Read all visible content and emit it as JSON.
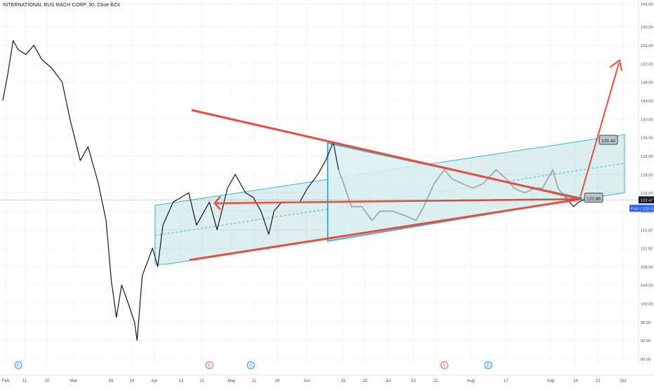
{
  "header": {
    "title": "INTERNATIONAL BUS MACH CORP, 30, Cboe BZX"
  },
  "chart_data": {
    "type": "line",
    "title": "INTERNATIONAL BUS MACH CORP, 30, Cboe BZX",
    "xlabel": "",
    "ylabel": "",
    "ylim": [
      86,
      166
    ],
    "y_ticks": [
      "88.00",
      "92.00",
      "96.00",
      "100.00",
      "104.00",
      "108.00",
      "112.00",
      "116.00",
      "120.00",
      "124.00",
      "128.00",
      "132.00",
      "136.00",
      "140.00",
      "144.00",
      "148.00",
      "152.00",
      "156.00",
      "160.00",
      "165.00"
    ],
    "y_tick_values": [
      88,
      92,
      96,
      100,
      104,
      108,
      112,
      116,
      120,
      124,
      128,
      132,
      136,
      140,
      144,
      148,
      152,
      156,
      160,
      165
    ],
    "x_ticks": [
      "Feb",
      "11",
      "20",
      "Mar",
      "16",
      "24",
      "Apr",
      "13",
      "21",
      "May",
      "11",
      "19",
      "Jun",
      "15",
      "23",
      "Jul",
      "13",
      "21",
      "Aug",
      "17",
      "Sep",
      "14",
      "22",
      "Oct"
    ],
    "price_points": [
      [
        "Feb 1",
        144
      ],
      [
        "Feb 3",
        150
      ],
      [
        "Feb 5",
        157
      ],
      [
        "Feb 7",
        155
      ],
      [
        "Feb 10",
        154
      ],
      [
        "Feb 13",
        156
      ],
      [
        "Feb 16",
        153
      ],
      [
        "Feb 20",
        151
      ],
      [
        "Feb 24",
        148
      ],
      [
        "Feb 27",
        140
      ],
      [
        "Mar 2",
        131
      ],
      [
        "Mar 5",
        134
      ],
      [
        "Mar 9",
        126
      ],
      [
        "Mar 12",
        118
      ],
      [
        "Mar 14",
        105
      ],
      [
        "Mar 16",
        97
      ],
      [
        "Mar 18",
        104
      ],
      [
        "Mar 20",
        101
      ],
      [
        "Mar 23",
        96
      ],
      [
        "Mar 24",
        92
      ],
      [
        "Mar 26",
        106
      ],
      [
        "Mar 30",
        112
      ],
      [
        "Apr 1",
        108
      ],
      [
        "Apr 3",
        117
      ],
      [
        "Apr 7",
        122
      ],
      [
        "Apr 13",
        124
      ],
      [
        "Apr 16",
        117
      ],
      [
        "Apr 21",
        122
      ],
      [
        "Apr 24",
        116
      ],
      [
        "Apr 28",
        125
      ],
      [
        "May 1",
        128
      ],
      [
        "May 5",
        124
      ],
      [
        "May 8",
        123
      ],
      [
        "May 11",
        120
      ],
      [
        "May 14",
        115
      ],
      [
        "May 16",
        120
      ],
      [
        "May 19",
        122
      ],
      [
        "May 22",
        122
      ],
      [
        "May 26",
        122
      ],
      [
        "May 29",
        125
      ],
      [
        "Jun 2",
        128
      ],
      [
        "Jun 5",
        131
      ],
      [
        "Jun 8",
        135
      ],
      [
        "Jun 10",
        129
      ],
      [
        "Jun 12",
        126
      ],
      [
        "Jun 15",
        121
      ],
      [
        "Jun 19",
        121
      ],
      [
        "Jun 23",
        118
      ],
      [
        "Jun 26",
        120
      ],
      [
        "Jul 1",
        120
      ],
      [
        "Jul 6",
        119
      ],
      [
        "Jul 10",
        118
      ],
      [
        "Jul 13",
        121
      ],
      [
        "Jul 17",
        126
      ],
      [
        "Jul 21",
        129
      ],
      [
        "Jul 24",
        127
      ],
      [
        "Jul 28",
        126
      ],
      [
        "Aug 1",
        125
      ],
      [
        "Aug 5",
        126
      ],
      [
        "Aug 10",
        129
      ],
      [
        "Aug 14",
        127
      ],
      [
        "Aug 17",
        125
      ],
      [
        "Aug 21",
        124
      ],
      [
        "Aug 25",
        125
      ],
      [
        "Aug 28",
        125
      ],
      [
        "Sep 1",
        129
      ],
      [
        "Sep 3",
        125
      ],
      [
        "Sep 6",
        123
      ],
      [
        "Sep 9",
        121
      ],
      [
        "Sep 11",
        122
      ],
      [
        "Sep 13",
        122.47
      ]
    ],
    "current_price": "122.47",
    "current_price_value": 122.47,
    "last_label": "Pcd = 122.47",
    "annotations": [
      {
        "text": "135.42",
        "value": 135.42
      },
      {
        "text": "122.86",
        "value": 122.86
      }
    ],
    "event_markers": [
      {
        "kind": "dividend",
        "symbol": "D",
        "x": "Feb 7"
      },
      {
        "kind": "earnings",
        "symbol": "E",
        "x": "Apr 21"
      },
      {
        "kind": "dividend",
        "symbol": "D",
        "x": "May 7"
      },
      {
        "kind": "earnings",
        "symbol": "E",
        "x": "Jul 21"
      },
      {
        "kind": "dividend",
        "symbol": "D",
        "x": "Aug 7"
      }
    ],
    "grid": true,
    "colors": {
      "price": "#131722",
      "price_faded": "#9ea3ab",
      "trendline": "#e84d3d",
      "channel_fill": "#5fb3b3",
      "channel_border": "#3cb4d9",
      "triangle_fill": "#d9eef0",
      "axis_text": "#4a4f59",
      "price_tag": "#2962ff"
    }
  }
}
